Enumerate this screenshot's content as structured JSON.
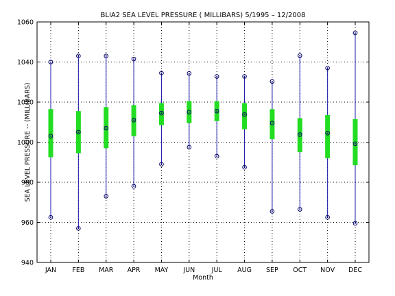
{
  "chart_data": {
    "type": "boxplot",
    "title": "BLIA2  SEA LEVEL PRESSURE ( MILLIBARS) 5/1995 – 12/2008",
    "xlabel": "Month",
    "ylabel": "SEA LEVEL PRESSURE -- (MILLIBARS)",
    "categories": [
      "JAN",
      "FEB",
      "MAR",
      "APR",
      "MAY",
      "JUN",
      "JUL",
      "AUG",
      "SEP",
      "OCT",
      "NOV",
      "DEC"
    ],
    "ylim": [
      940,
      1060
    ],
    "yticks": [
      940,
      960,
      980,
      1000,
      1020,
      1040,
      1060
    ],
    "grid": true,
    "series": [
      {
        "stat": "max",
        "values": [
          1040.0,
          1043.0,
          1043.0,
          1041.5,
          1034.5,
          1034.3,
          1032.8,
          1032.8,
          1030.3,
          1043.2,
          1037.0,
          1054.5
        ]
      },
      {
        "stat": "q3",
        "values": [
          1016.5,
          1015.5,
          1017.5,
          1018.5,
          1019.5,
          1020.5,
          1020.5,
          1019.5,
          1016.5,
          1012.0,
          1013.5,
          1011.5
        ]
      },
      {
        "stat": "median",
        "values": [
          1003.0,
          1005.0,
          1007.0,
          1011.0,
          1014.5,
          1015.0,
          1015.5,
          1013.8,
          1009.5,
          1003.8,
          1004.5,
          999.2
        ]
      },
      {
        "stat": "q1",
        "values": [
          992.5,
          994.5,
          997.0,
          1003.0,
          1008.5,
          1009.5,
          1010.5,
          1006.5,
          1001.5,
          995.0,
          992.0,
          988.5
        ]
      },
      {
        "stat": "min",
        "values": [
          962.5,
          957.0,
          973.0,
          978.0,
          989.0,
          997.5,
          993.0,
          987.5,
          965.5,
          966.5,
          962.5,
          959.5
        ]
      }
    ],
    "colors": {
      "box": "#22dd22",
      "whisker": "#1a1aaa",
      "marker": "#000066",
      "grid": "#000000",
      "axis": "#000000"
    }
  }
}
